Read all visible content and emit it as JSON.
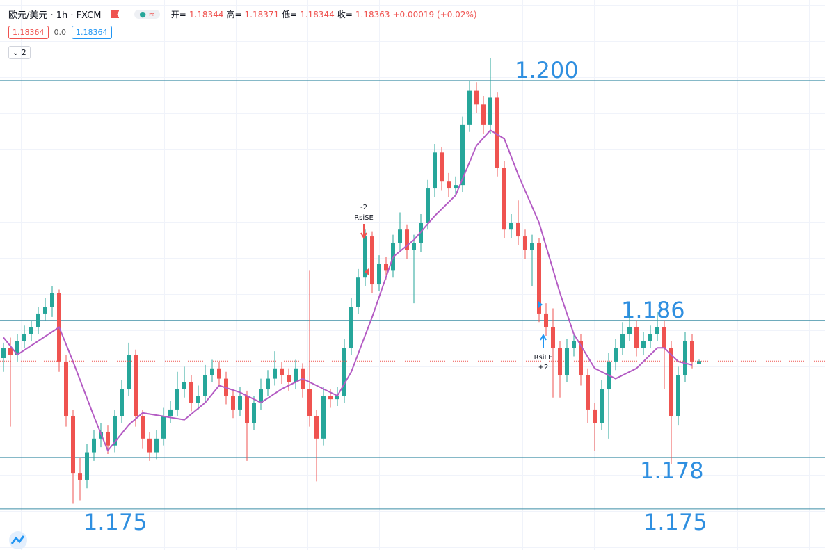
{
  "header": {
    "symbol": "欧元/美元 · 1h · FXCM",
    "ohlc_labels": [
      "开=",
      "高=",
      "低=",
      "收="
    ],
    "change": "+0.00019 (+0.02%)",
    "bid": 1.18364,
    "spread": "0.0",
    "ask": 1.18364,
    "indicator_count": 2
  },
  "chart_data": {
    "type": "candlestick",
    "ylim": [
      1.1726,
      1.2047
    ],
    "up_color": "#26a69a",
    "down_color": "#ef5350",
    "open": [
      1.1838,
      1.1844,
      1.184,
      1.1848,
      1.1852,
      1.1856,
      1.1864,
      1.1868,
      1.1876,
      1.1836,
      1.1804,
      1.1771,
      1.1767,
      1.1783,
      1.1791,
      1.1795,
      1.1787,
      1.1804,
      1.182,
      1.184,
      1.1804,
      1.1791,
      1.1783,
      1.1791,
      1.1804,
      1.1808,
      1.182,
      1.1824,
      1.1812,
      1.1816,
      1.1828,
      1.1832,
      1.1826,
      1.1816,
      1.1808,
      1.1816,
      1.18,
      1.1812,
      1.182,
      1.1826,
      1.1832,
      1.1828,
      1.1824,
      1.1832,
      1.182,
      1.1804,
      1.1791,
      1.1816,
      1.1814,
      1.1816,
      1.1844,
      1.1868,
      1.1885,
      1.1909,
      1.1881,
      1.1893,
      1.1889,
      1.1905,
      1.1913,
      1.1901,
      1.1905,
      1.1917,
      1.1937,
      1.1958,
      1.1941,
      1.1937,
      1.1939,
      1.1974,
      1.1994,
      1.1986,
      1.1974,
      1.199,
      1.1949,
      1.1913,
      1.1917,
      1.1909,
      1.1901,
      1.1905,
      1.1864,
      1.1856,
      1.1844,
      1.1828,
      1.1844,
      1.1848,
      1.1828,
      1.1808,
      1.18,
      1.182,
      1.1836,
      1.1844,
      1.1852,
      1.1856,
      1.1844,
      1.1848,
      1.1852,
      1.1856,
      1.1844,
      1.1804,
      1.1828,
      1.1848,
      1.18344
    ],
    "high": [
      1.1847,
      1.185,
      1.1852,
      1.1857,
      1.186,
      1.1868,
      1.1873,
      1.188,
      1.1878,
      1.184,
      1.1808,
      1.178,
      1.1788,
      1.1796,
      1.18,
      1.1799,
      1.1808,
      1.1825,
      1.1847,
      1.1843,
      1.1808,
      1.1795,
      1.1796,
      1.1809,
      1.1813,
      1.183,
      1.1833,
      1.1828,
      1.1822,
      1.1834,
      1.1837,
      1.1836,
      1.183,
      1.182,
      1.1821,
      1.1819,
      1.1816,
      1.1826,
      1.1831,
      1.1842,
      1.1836,
      1.1832,
      1.1837,
      1.1835,
      1.1889,
      1.1808,
      1.1821,
      1.182,
      1.1821,
      1.1849,
      1.1873,
      1.189,
      1.1913,
      1.1912,
      1.1898,
      1.1897,
      1.191,
      1.1923,
      1.1916,
      1.191,
      1.1922,
      1.1942,
      1.1963,
      1.1961,
      1.1946,
      1.1944,
      1.1979,
      1.2,
      1.1999,
      1.1991,
      1.2013,
      1.1993,
      1.1953,
      1.1922,
      1.193,
      1.1913,
      1.191,
      1.1908,
      1.187,
      1.1867,
      1.1848,
      1.1849,
      1.1852,
      1.1852,
      1.1832,
      1.1812,
      1.1825,
      1.1841,
      1.1849,
      1.1859,
      1.1865,
      1.186,
      1.1853,
      1.1857,
      1.1865,
      1.186,
      1.1848,
      1.1833,
      1.1853,
      1.1852,
      1.18371
    ],
    "low": [
      1.183,
      1.1798,
      1.1836,
      1.1844,
      1.1848,
      1.1852,
      1.186,
      1.1862,
      1.183,
      1.1798,
      1.1753,
      1.1755,
      1.1762,
      1.1778,
      1.1786,
      1.1782,
      1.1783,
      1.18,
      1.1816,
      1.1798,
      1.1785,
      1.1778,
      1.1779,
      1.1787,
      1.18,
      1.1804,
      1.1815,
      1.1807,
      1.1808,
      1.1812,
      1.1824,
      1.1821,
      1.1811,
      1.1803,
      1.1804,
      1.1778,
      1.1796,
      1.1808,
      1.1816,
      1.1822,
      1.1823,
      1.1819,
      1.182,
      1.1815,
      1.1798,
      1.1766,
      1.1787,
      1.1809,
      1.181,
      1.1812,
      1.184,
      1.1864,
      1.188,
      1.1876,
      1.1877,
      1.1884,
      1.1885,
      1.19,
      1.1896,
      1.187,
      1.19,
      1.1913,
      1.1932,
      1.1936,
      1.1932,
      1.1933,
      1.1935,
      1.197,
      1.1981,
      1.1969,
      1.1969,
      1.1944,
      1.1908,
      1.1908,
      1.1904,
      1.1896,
      1.188,
      1.1859,
      1.1851,
      1.1815,
      1.1815,
      1.1824,
      1.1839,
      1.1822,
      1.18,
      1.1784,
      1.1796,
      1.1791,
      1.1831,
      1.184,
      1.1848,
      1.1839,
      1.184,
      1.1844,
      1.1848,
      1.182,
      1.1776,
      1.1799,
      1.1824,
      1.1832,
      1.18344
    ],
    "close": [
      1.1844,
      1.184,
      1.1848,
      1.1852,
      1.1856,
      1.1864,
      1.1868,
      1.1876,
      1.1836,
      1.1804,
      1.1771,
      1.1767,
      1.1783,
      1.1791,
      1.1795,
      1.1787,
      1.1804,
      1.182,
      1.184,
      1.1804,
      1.1791,
      1.1783,
      1.1791,
      1.1804,
      1.1808,
      1.182,
      1.1824,
      1.1812,
      1.1816,
      1.1828,
      1.1832,
      1.1826,
      1.1816,
      1.1808,
      1.1816,
      1.18,
      1.1812,
      1.182,
      1.1826,
      1.1832,
      1.1828,
      1.1824,
      1.1832,
      1.182,
      1.1804,
      1.1791,
      1.1816,
      1.1814,
      1.1816,
      1.1844,
      1.1868,
      1.1885,
      1.1909,
      1.1881,
      1.1893,
      1.1889,
      1.1905,
      1.1913,
      1.1901,
      1.1905,
      1.1917,
      1.1937,
      1.1958,
      1.1941,
      1.1937,
      1.1939,
      1.1974,
      1.1994,
      1.1986,
      1.1974,
      1.199,
      1.1949,
      1.1913,
      1.1917,
      1.1909,
      1.1901,
      1.1905,
      1.1864,
      1.1856,
      1.1844,
      1.1828,
      1.1844,
      1.1848,
      1.1828,
      1.1808,
      1.18,
      1.182,
      1.1836,
      1.1844,
      1.1852,
      1.1856,
      1.1844,
      1.1848,
      1.1852,
      1.1856,
      1.1844,
      1.1804,
      1.1828,
      1.1848,
      1.1836,
      1.18363
    ],
    "ma": {
      "color": "#b45cc4",
      "x": [
        0,
        2,
        5,
        8,
        10,
        13,
        15,
        18,
        20,
        23,
        26,
        29,
        31,
        34,
        37,
        40,
        43,
        46,
        48,
        50,
        53,
        56,
        59,
        62,
        65,
        68,
        70,
        72,
        74,
        77,
        80,
        82,
        85,
        88,
        91,
        94,
        95,
        97,
        99
      ],
      "values": [
        1.185,
        1.184,
        1.1848,
        1.1856,
        1.1836,
        1.1804,
        1.1784,
        1.1799,
        1.1806,
        1.1804,
        1.1802,
        1.1812,
        1.1822,
        1.1818,
        1.1812,
        1.182,
        1.1826,
        1.182,
        1.1816,
        1.183,
        1.1862,
        1.1897,
        1.1907,
        1.1921,
        1.1933,
        1.1962,
        1.1971,
        1.1966,
        1.1945,
        1.1917,
        1.1876,
        1.1852,
        1.1832,
        1.1826,
        1.1832,
        1.1844,
        1.1844,
        1.1836,
        1.1834
      ]
    },
    "levels": [
      {
        "value": 1.2,
        "label": "1.200"
      },
      {
        "value": 1.186,
        "label": "1.186"
      },
      {
        "value": 1.178,
        "label": "1.178"
      },
      {
        "value": 1.175,
        "label": "1.175"
      }
    ],
    "level_color": "#3f8fa6",
    "signals": [
      {
        "qty": "-2",
        "text": "RsiSE"
      },
      {
        "text": "RsiLE",
        "qty": "+2"
      }
    ]
  }
}
